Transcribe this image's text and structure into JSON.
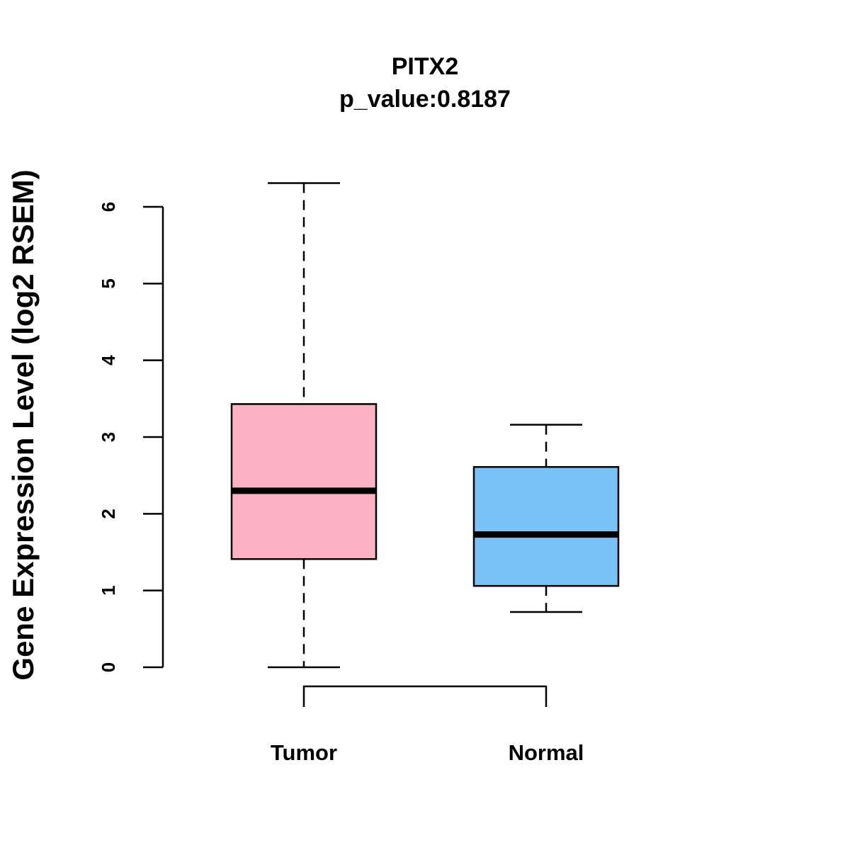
{
  "chart_data": {
    "type": "boxplot",
    "title": "PITX2",
    "subtitle": "p_value:0.8187",
    "xlabel": "",
    "ylabel": "Gene Expression Level (log2 RSEM)",
    "ylim": [
      0,
      6
    ],
    "y_ticks": [
      "0",
      "1",
      "2",
      "3",
      "4",
      "5",
      "6"
    ],
    "grid": false,
    "categories": [
      "Tumor",
      "Normal"
    ],
    "groups": [
      {
        "name": "Tumor",
        "min": 0.0,
        "q1": 1.41,
        "median": 2.3,
        "q3": 3.43,
        "max": 6.31,
        "color": "#FCB2C3"
      },
      {
        "name": "Normal",
        "min": 0.72,
        "q1": 1.06,
        "median": 1.73,
        "q3": 2.61,
        "max": 3.16,
        "color": "#79C2F7"
      }
    ],
    "significance_bracket": {
      "from": "Tumor",
      "to": "Normal"
    }
  }
}
